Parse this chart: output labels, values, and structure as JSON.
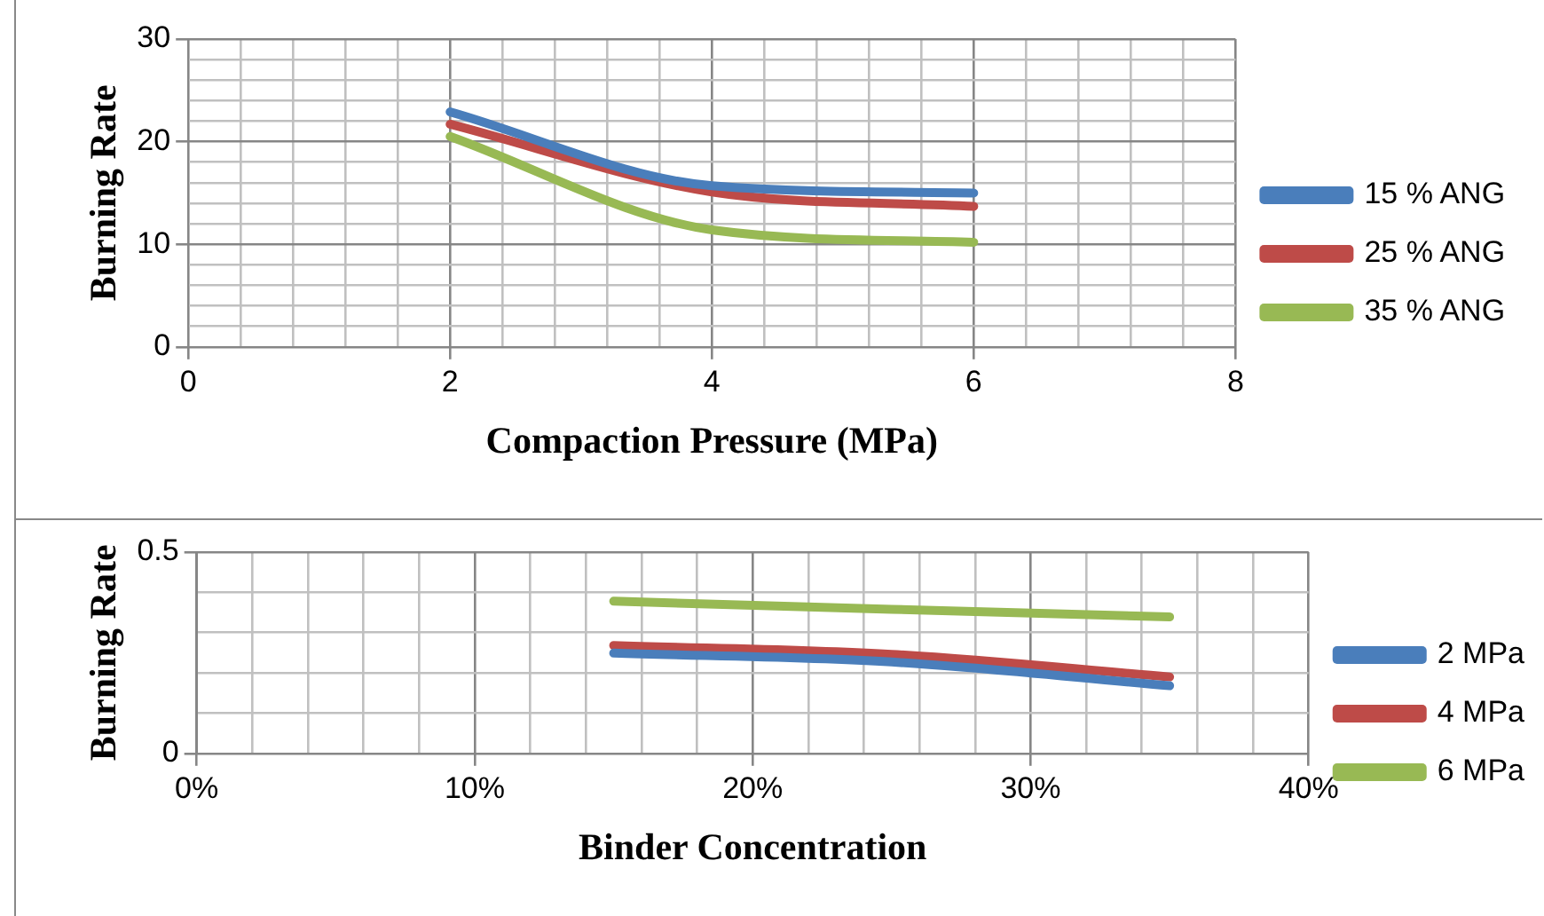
{
  "chart_data": [
    {
      "type": "line",
      "xlabel": "Compaction Pressure (MPa)",
      "ylabel": "Burning Rate",
      "x": [
        2,
        4,
        6
      ],
      "series": [
        {
          "name": "15 % ANG",
          "color": "#4a7ebb",
          "values": [
            22.9,
            15.7,
            15.0
          ]
        },
        {
          "name": "25 % ANG",
          "color": "#be4b48",
          "values": [
            21.7,
            15.1,
            13.7
          ]
        },
        {
          "name": "35 % ANG",
          "color": "#98b954",
          "values": [
            20.5,
            11.4,
            10.2
          ]
        }
      ],
      "xlim": [
        0,
        8
      ],
      "xticks": [
        0,
        {
          "value": 0.4,
          "label": null
        },
        {
          "value": 0.8,
          "label": null
        },
        {
          "value": 1.2,
          "label": null
        },
        {
          "value": 1.6,
          "label": null
        },
        2,
        {
          "value": 2.4,
          "label": null
        },
        {
          "value": 2.8,
          "label": null
        },
        {
          "value": 3.2,
          "label": null
        },
        {
          "value": 3.6,
          "label": null
        },
        4,
        {
          "value": 4.4,
          "label": null
        },
        {
          "value": 4.8,
          "label": null
        },
        {
          "value": 5.2,
          "label": null
        },
        {
          "value": 5.6,
          "label": null
        },
        6,
        {
          "value": 6.4,
          "label": null
        },
        {
          "value": 6.8,
          "label": null
        },
        {
          "value": 7.2,
          "label": null
        },
        {
          "value": 7.6,
          "label": null
        },
        8
      ],
      "ylim": [
        0,
        30
      ],
      "yticks": [
        0,
        {
          "value": 2,
          "label": null
        },
        {
          "value": 4,
          "label": null
        },
        {
          "value": 6,
          "label": null
        },
        {
          "value": 8,
          "label": null
        },
        10,
        {
          "value": 12,
          "label": null
        },
        {
          "value": 14,
          "label": null
        },
        {
          "value": 16,
          "label": null
        },
        {
          "value": 18,
          "label": null
        },
        20,
        {
          "value": 22,
          "label": null
        },
        {
          "value": 24,
          "label": null
        },
        {
          "value": 26,
          "label": null
        },
        {
          "value": 28,
          "label": null
        },
        30
      ],
      "grid": true,
      "legend": "right",
      "marker": "none",
      "line_style": "solid"
    },
    {
      "type": "line",
      "xlabel": "Binder Concentration",
      "ylabel": "Burning Rate",
      "x": [
        15,
        25,
        35
      ],
      "series": [
        {
          "name": "2 MPa",
          "color": "#4a7ebb",
          "values": [
            0.249,
            0.227,
            0.168
          ]
        },
        {
          "name": "4 MPa",
          "color": "#be4b48",
          "values": [
            0.268,
            0.246,
            0.19
          ]
        },
        {
          "name": "6 MPa",
          "color": "#98b954",
          "values": [
            0.378,
            0.358,
            0.339
          ]
        }
      ],
      "xlim": [
        0,
        40
      ],
      "xticks": [
        {
          "value": 0,
          "label": "0%"
        },
        {
          "value": 2,
          "label": null
        },
        {
          "value": 4,
          "label": null
        },
        {
          "value": 6,
          "label": null
        },
        {
          "value": 8,
          "label": null
        },
        {
          "value": 10,
          "label": "10%"
        },
        {
          "value": 12,
          "label": null
        },
        {
          "value": 14,
          "label": null
        },
        {
          "value": 16,
          "label": null
        },
        {
          "value": 18,
          "label": null
        },
        {
          "value": 20,
          "label": "20%"
        },
        {
          "value": 22,
          "label": null
        },
        {
          "value": 24,
          "label": null
        },
        {
          "value": 26,
          "label": null
        },
        {
          "value": 28,
          "label": null
        },
        {
          "value": 30,
          "label": "30%"
        },
        {
          "value": 32,
          "label": null
        },
        {
          "value": 34,
          "label": null
        },
        {
          "value": 36,
          "label": null
        },
        {
          "value": 38,
          "label": null
        },
        {
          "value": 40,
          "label": "40%"
        }
      ],
      "ylim": [
        0,
        0.5
      ],
      "yticks": [
        0,
        {
          "value": 0.1,
          "label": null
        },
        {
          "value": 0.2,
          "label": null
        },
        {
          "value": 0.3,
          "label": null
        },
        {
          "value": 0.4,
          "label": null
        },
        0.5
      ],
      "grid": true,
      "legend": "right",
      "marker": "none",
      "line_style": "solid"
    }
  ]
}
